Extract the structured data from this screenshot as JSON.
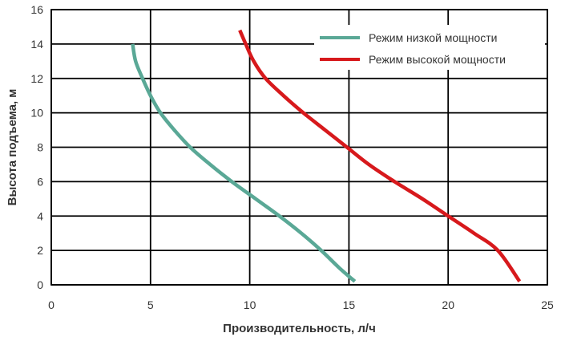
{
  "chart_data": {
    "type": "line",
    "xlabel": "Производительность, л/ч",
    "ylabel": "Высота подъема, м",
    "xlim": [
      0,
      25
    ],
    "ylim": [
      0,
      16
    ],
    "xticks": [
      0,
      5,
      10,
      15,
      20,
      25
    ],
    "yticks": [
      0,
      2,
      4,
      6,
      8,
      10,
      12,
      14,
      16
    ],
    "grid": true,
    "legend_position": "top-right",
    "series": [
      {
        "name": "Режим низкой мощности",
        "color": "#5aa896",
        "x": [
          4.1,
          4.25,
          4.6,
          5.0,
          5.5,
          6.2,
          7.0,
          8.0,
          9.1,
          10.3,
          11.5,
          12.6,
          13.6,
          14.5,
          15.3
        ],
        "y": [
          14,
          13,
          12,
          11,
          10,
          9,
          8,
          7,
          6,
          5,
          4,
          3,
          2,
          1,
          0.2
        ]
      },
      {
        "name": "Режим высокой мощности",
        "color": "#d7191c",
        "x": [
          9.5,
          9.8,
          10.2,
          10.8,
          11.7,
          12.7,
          13.8,
          14.9,
          16.0,
          17.3,
          18.7,
          20.0,
          21.3,
          22.5,
          23.6
        ],
        "y": [
          14.8,
          14,
          13,
          12,
          11,
          10,
          9,
          8,
          7,
          6,
          5,
          4,
          3,
          2,
          0.2
        ]
      }
    ]
  }
}
